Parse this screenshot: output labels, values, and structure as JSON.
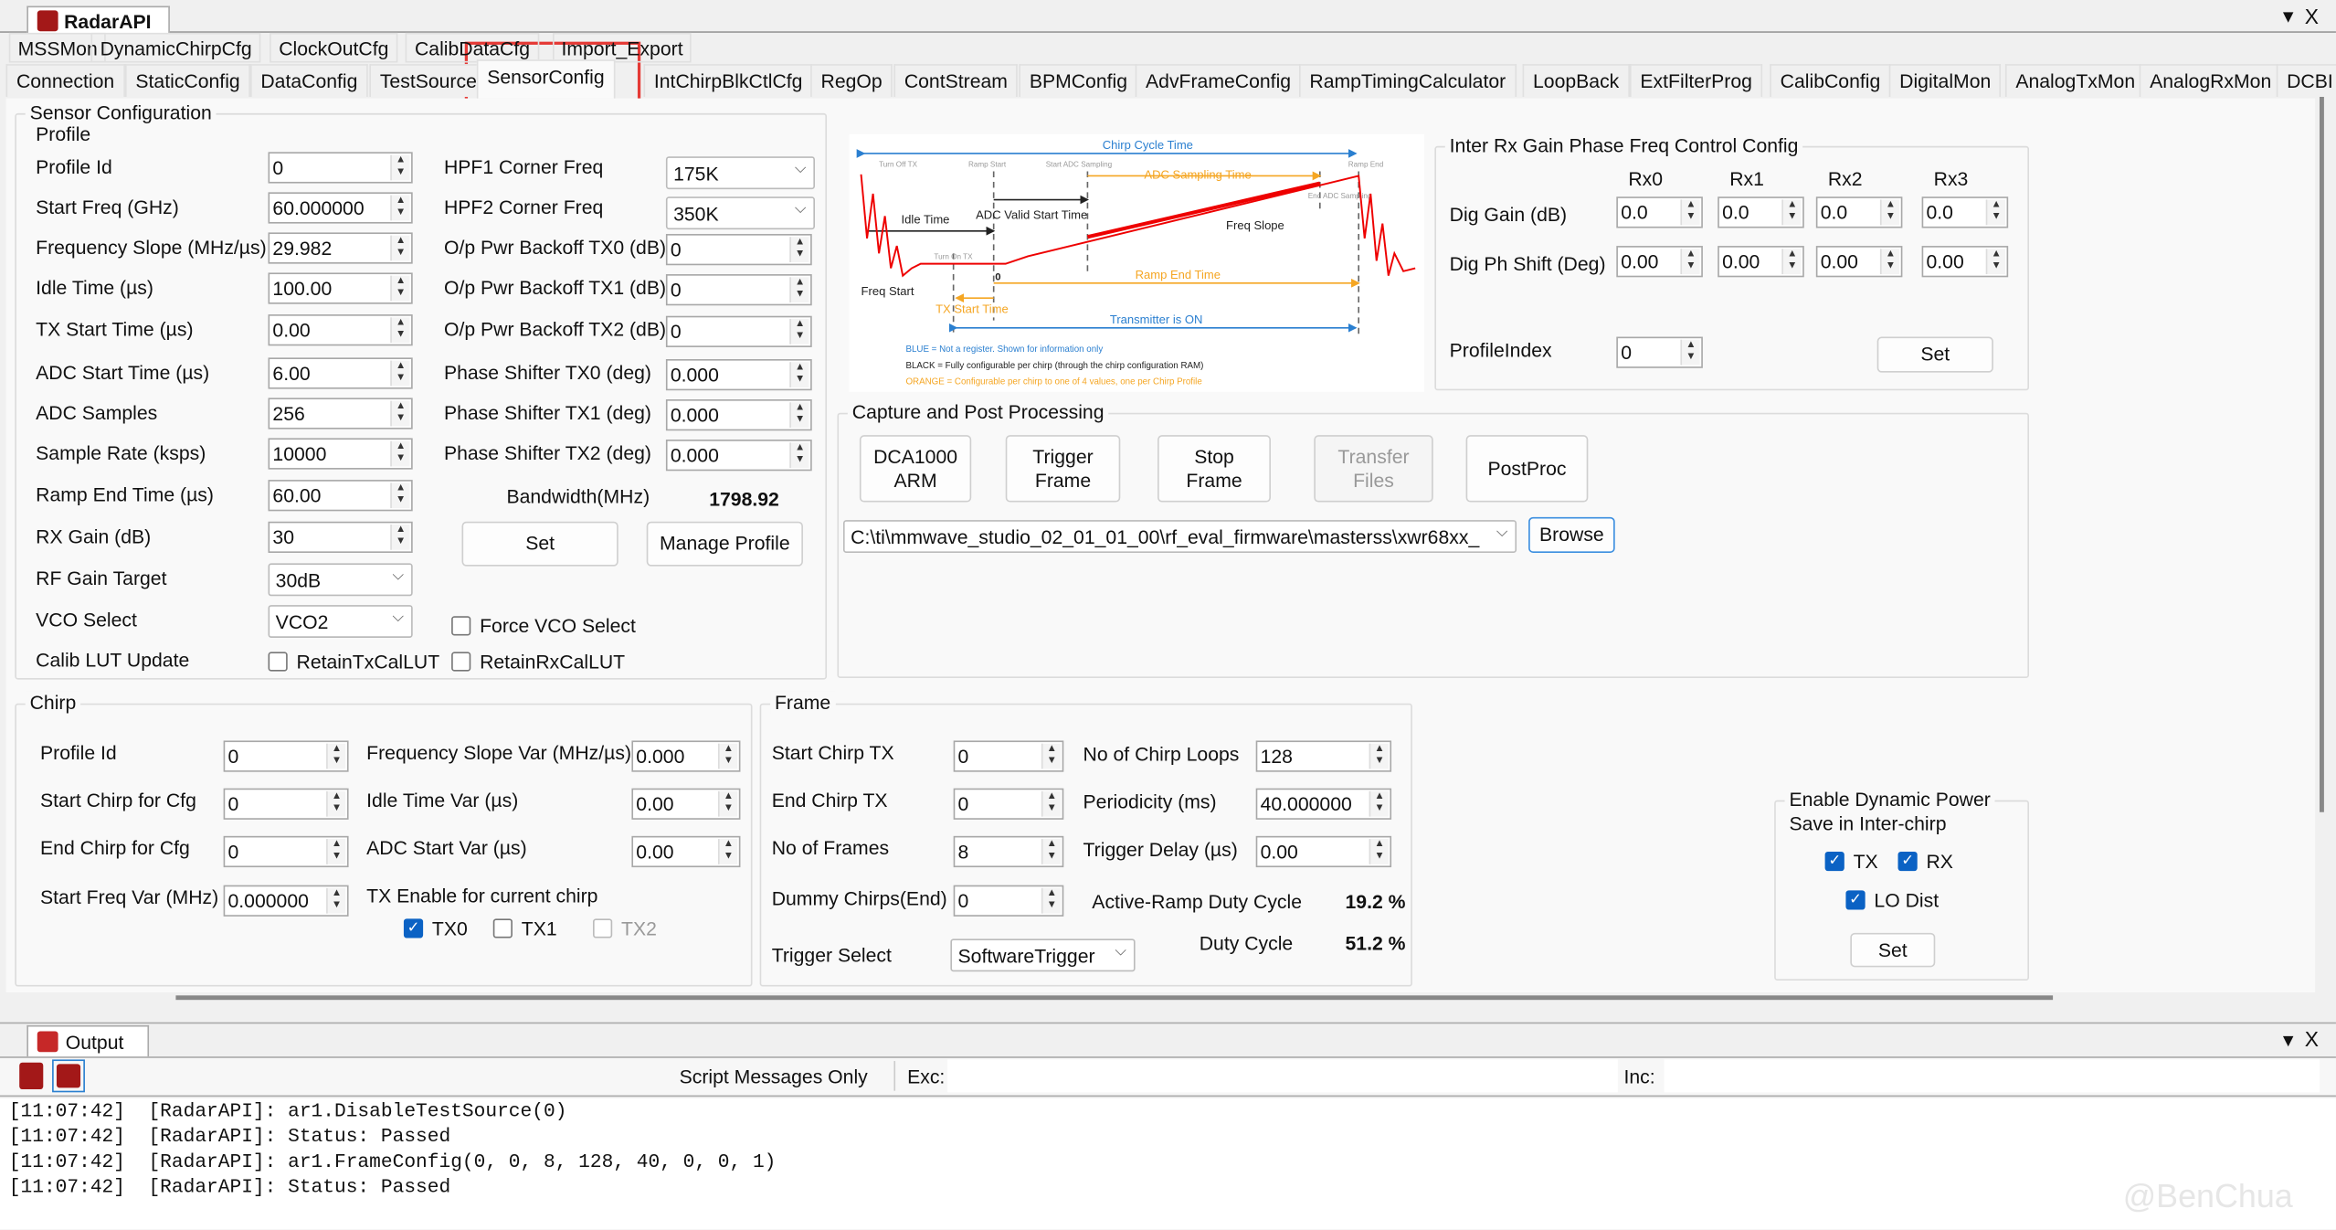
{
  "window": {
    "title": "RadarAPI",
    "menu_icon": "dropdown-triangle",
    "close": "X"
  },
  "tabs_row1": [
    "MSSMon",
    "DynamicChirpCfg",
    "ClockOutCfg",
    "CalibDataCfg",
    "Import_Export"
  ],
  "tabs_row2": [
    "Connection",
    "StaticConfig",
    "DataConfig",
    "TestSource",
    "SensorConfig",
    "IntChirpBlkCtlCfg",
    "RegOp",
    "ContStream",
    "BPMConfig",
    "AdvFrameConfig",
    "RampTimingCalculator",
    "LoopBack",
    "ExtFilterProg",
    "CalibConfig",
    "DigitalMon",
    "AnalogTxMon",
    "AnalogRxMon",
    "DCBI"
  ],
  "active_tab": "SensorConfig",
  "highlight_color": "#e53935",
  "sensor": {
    "title": "Sensor Configuration",
    "profile_title": "Profile",
    "left": [
      {
        "label": "Profile Id",
        "value": "0"
      },
      {
        "label": "Start Freq (GHz)",
        "value": "60.000000"
      },
      {
        "label": "Frequency Slope (MHz/µs)",
        "value": "29.982"
      },
      {
        "label": "Idle Time (µs)",
        "value": "100.00"
      },
      {
        "label": "TX Start Time (µs)",
        "value": "0.00"
      },
      {
        "label": "ADC Start Time (µs)",
        "value": "6.00"
      },
      {
        "label": "ADC Samples",
        "value": "256"
      },
      {
        "label": "Sample Rate (ksps)",
        "value": "10000"
      },
      {
        "label": "Ramp End Time (µs)",
        "value": "60.00"
      },
      {
        "label": "RX Gain (dB)",
        "value": "30"
      }
    ],
    "rf_gain": {
      "label": "RF Gain Target",
      "value": "30dB"
    },
    "vco": {
      "label": "VCO Select",
      "value": "VCO2"
    },
    "force_vco": {
      "label": "Force VCO Select",
      "checked": false
    },
    "calib": {
      "label": "Calib LUT Update",
      "tx": "RetainTxCalLUT",
      "rx": "RetainRxCalLUT"
    },
    "hpf1": {
      "label": "HPF1 Corner Freq",
      "value": "175K"
    },
    "hpf2": {
      "label": "HPF2 Corner Freq",
      "value": "350K"
    },
    "right": [
      {
        "label": "O/p Pwr Backoff TX0 (dB)",
        "value": "0"
      },
      {
        "label": "O/p Pwr Backoff TX1 (dB)",
        "value": "0"
      },
      {
        "label": "O/p Pwr Backoff TX2 (dB)",
        "value": "0"
      },
      {
        "label": "Phase Shifter TX0 (deg)",
        "value": "0.000"
      },
      {
        "label": "Phase Shifter TX1 (deg)",
        "value": "0.000"
      },
      {
        "label": "Phase Shifter TX2 (deg)",
        "value": "0.000"
      }
    ],
    "bandwidth_label": "Bandwidth(MHz)",
    "bandwidth_value": "1798.92",
    "set": "Set",
    "manage": "Manage Profile"
  },
  "diagram": {
    "chirp_cycle": "Chirp Cycle Time",
    "turn_off": "Turn Off TX",
    "ramp_start": "Ramp Start",
    "start_adc": "Start ADC Sampling",
    "ramp_end": "Ramp End",
    "adc_sampling": "ADC Sampling Time",
    "end_adc": "End ADC Sampling",
    "adc_valid": "ADC Valid Start Time",
    "idle": "Idle Time",
    "freq_slope": "Freq Slope",
    "turn_on": "Turn On TX",
    "zero": "0",
    "freq_start": "Freq Start",
    "ramp_end_time": "Ramp End Time",
    "tx_start": "TX Start Time",
    "tx_on": "Transmitter is ON",
    "legend_blue": "BLUE = Not a register. Shown for information only",
    "legend_black": "BLACK = Fully configurable per chirp (through the chirp configuration RAM)",
    "legend_orange": "ORANGE = Configurable per chirp to one of 4 values, one per Chirp Profile"
  },
  "interrx": {
    "title": "Inter Rx Gain Phase Freq Control Config",
    "cols": [
      "Rx0",
      "Rx1",
      "Rx2",
      "Rx3"
    ],
    "gain_label": "Dig Gain (dB)",
    "gain": [
      "0.0",
      "0.0",
      "0.0",
      "0.0"
    ],
    "ph_label": "Dig Ph Shift (Deg)",
    "ph": [
      "0.00",
      "0.00",
      "0.00",
      "0.00"
    ],
    "pi_label": "ProfileIndex",
    "pi_value": "0",
    "set": "Set"
  },
  "capture": {
    "title": "Capture and Post Processing",
    "buttons": [
      "DCA1000 ARM",
      "Trigger Frame",
      "Stop Frame",
      "Transfer Files",
      "PostProc"
    ],
    "path": "C:\\ti\\mmwave_studio_02_01_01_00\\rf_eval_firmware\\masterss\\xwr68xx_",
    "browse": "Browse"
  },
  "chirp": {
    "title": "Chirp",
    "left": [
      {
        "label": "Profile Id",
        "value": "0"
      },
      {
        "label": "Start Chirp for Cfg",
        "value": "0"
      },
      {
        "label": "End Chirp for Cfg",
        "value": "0"
      },
      {
        "label": "Start Freq Var (MHz)",
        "value": "0.000000"
      }
    ],
    "right": [
      {
        "label": "Frequency Slope Var (MHz/µs)",
        "value": "0.000"
      },
      {
        "label": "Idle Time Var (µs)",
        "value": "0.00"
      },
      {
        "label": "ADC Start Var (µs)",
        "value": "0.00"
      }
    ],
    "tx_label": "TX Enable for current chirp",
    "tx": [
      {
        "label": "TX0",
        "checked": true
      },
      {
        "label": "TX1",
        "checked": false
      },
      {
        "label": "TX2",
        "checked": false,
        "disabled": true
      }
    ]
  },
  "frame": {
    "title": "Frame",
    "left": [
      {
        "label": "Start Chirp TX",
        "value": "0"
      },
      {
        "label": "End Chirp TX",
        "value": "0"
      },
      {
        "label": "No of Frames",
        "value": "8"
      },
      {
        "label": "Dummy Chirps(End)",
        "value": "0"
      }
    ],
    "right": [
      {
        "label": "No of Chirp Loops",
        "value": "128"
      },
      {
        "label": "Periodicity (ms)",
        "value": "40.000000"
      },
      {
        "label": "Trigger Delay (µs)",
        "value": "0.00"
      }
    ],
    "trigger_label": "Trigger Select",
    "trigger_value": "SoftwareTrigger",
    "active_label": "Active-Ramp Duty Cycle",
    "active_value": "19.2 %",
    "duty_label": "Duty Cycle",
    "duty_value": "51.2 %"
  },
  "power": {
    "title1": "Enable Dynamic Power",
    "title2": "Save in Inter-chirp",
    "tx": "TX",
    "rx": "RX",
    "lo": "LO Dist",
    "set": "Set"
  },
  "output": {
    "tab": "Output",
    "filter": "Script Messages Only",
    "exc": "Exc:",
    "inc": "Inc:",
    "lines": [
      "[11:07:42]  [RadarAPI]: ar1.DisableTestSource(0)",
      "[11:07:42]  [RadarAPI]: Status: Passed",
      "[11:07:42]  [RadarAPI]: ar1.FrameConfig(0, 0, 8, 128, 40, 0, 0, 1)",
      "[11:07:42]  [RadarAPI]: Status: Passed"
    ]
  },
  "watermark": "@BenChua"
}
